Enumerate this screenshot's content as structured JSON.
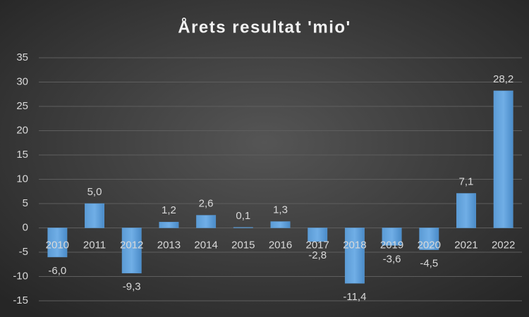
{
  "chart_data": {
    "type": "bar",
    "title": "Årets resultat 'mio'",
    "categories": [
      "2010",
      "2011",
      "2012",
      "2013",
      "2014",
      "2015",
      "2016",
      "2017",
      "2018",
      "2019",
      "2020",
      "2021",
      "2022"
    ],
    "values": [
      -6.0,
      5.0,
      -9.3,
      1.2,
      2.6,
      0.1,
      1.3,
      -2.8,
      -11.4,
      -3.6,
      -4.5,
      7.1,
      28.2
    ],
    "value_labels": [
      "-6,0",
      "5,0",
      "-9,3",
      "1,2",
      "2,6",
      "0,1",
      "1,3",
      "-2,8",
      "-11,4",
      "-3,6",
      "-4,5",
      "7,1",
      "28,2"
    ],
    "color": "#5b9bd5",
    "ylim": [
      -15,
      35
    ],
    "yticks": [
      -15,
      -10,
      -5,
      0,
      5,
      10,
      15,
      20,
      25,
      30,
      35
    ],
    "grid": true
  }
}
